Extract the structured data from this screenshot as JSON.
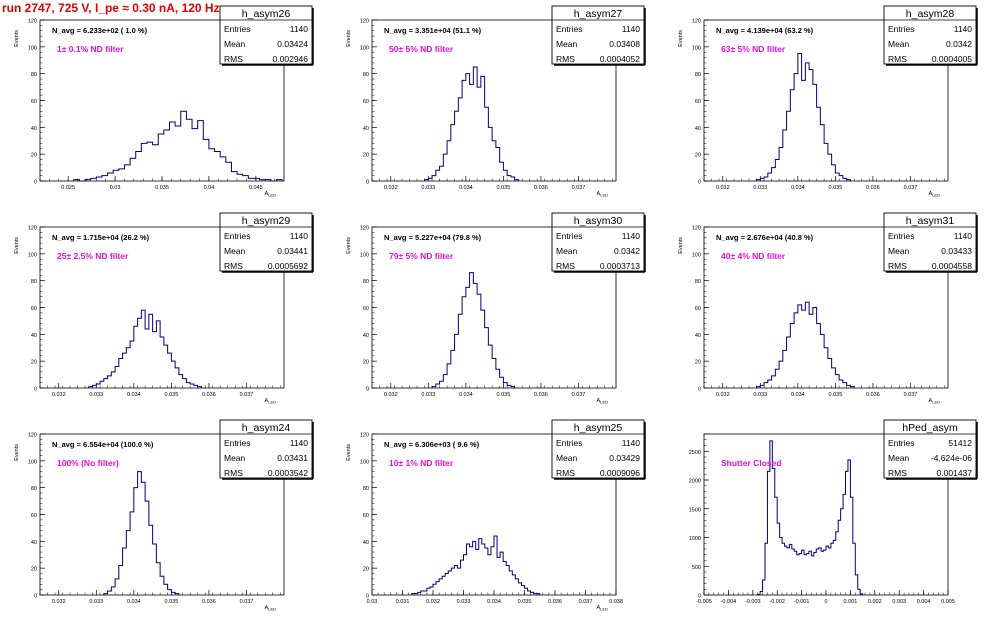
{
  "page_title": "run 2747,   725 V, I_pe ≈ 0.30 nA, 120 Hz",
  "colors": {
    "histogram": "#00007a",
    "axes": "#000000",
    "filter_label": "#e010e0",
    "title": "#e00000"
  },
  "stats_labels": {
    "entries": "Entries",
    "mean": "Mean",
    "rms": "RMS"
  },
  "chart_data": [
    {
      "type": "histogram",
      "name": "h_asym26",
      "ylabel": "Events",
      "xlabel": "A_{LED}",
      "navg": "N_avg = 6.233e+02 ( 1.0 %)",
      "filter": "1± 0.1% ND filter",
      "entries": "1140",
      "mean": "0.03424",
      "rms": "0.002946",
      "xlim": [
        0.022,
        0.048
      ],
      "ylim": [
        0,
        120
      ],
      "xticks": [
        0.025,
        0.03,
        0.035,
        0.04,
        0.045
      ],
      "xtick_labels": [
        "0.025",
        "0.03",
        "0.035",
        "0.04",
        "0.045"
      ],
      "yticks": [
        0,
        20,
        40,
        60,
        80,
        100,
        120
      ],
      "bins": {
        "start": 0.0256,
        "width": 0.0006,
        "counts": [
          1,
          0,
          1,
          2,
          3,
          4,
          6,
          8,
          9,
          12,
          17,
          22,
          28,
          29,
          27,
          35,
          38,
          44,
          41,
          52,
          46,
          39,
          45,
          31,
          24,
          22,
          18,
          14,
          7,
          5,
          4,
          2,
          2,
          1,
          1,
          0,
          1
        ]
      }
    },
    {
      "type": "histogram",
      "name": "h_asym27",
      "ylabel": "Events",
      "xlabel": "A_{LED}",
      "navg": "N_avg = 3.351e+04 (51.1 %)",
      "filter": "50± 5% ND filter",
      "entries": "1140",
      "mean": "0.03408",
      "rms": "0.0004052",
      "xlim": [
        0.0315,
        0.038
      ],
      "ylim": [
        0,
        120
      ],
      "xticks": [
        0.032,
        0.033,
        0.034,
        0.035,
        0.036,
        0.037
      ],
      "xtick_labels": [
        "0.032",
        "0.033",
        "0.034",
        "0.035",
        "0.036",
        "0.037"
      ],
      "yticks": [
        0,
        20,
        40,
        60,
        80,
        100,
        120
      ],
      "bins": {
        "start": 0.0329,
        "width": 0.0001,
        "counts": [
          1,
          2,
          4,
          8,
          11,
          20,
          30,
          42,
          52,
          62,
          75,
          80,
          72,
          85,
          70,
          78,
          55,
          40,
          30,
          25,
          14,
          8,
          4,
          3,
          1
        ]
      }
    },
    {
      "type": "histogram",
      "name": "h_asym28",
      "ylabel": "Events",
      "xlabel": "A_{LED}",
      "navg": "N_avg = 4.139e+04 (63.2 %)",
      "filter": "63± 5% ND filter",
      "entries": "1140",
      "mean": "0.0342",
      "rms": "0.0004005",
      "xlim": [
        0.0315,
        0.038
      ],
      "ylim": [
        0,
        120
      ],
      "xticks": [
        0.032,
        0.033,
        0.034,
        0.035,
        0.036,
        0.037
      ],
      "xtick_labels": [
        "0.032",
        "0.033",
        "0.034",
        "0.035",
        "0.036",
        "0.037"
      ],
      "yticks": [
        0,
        20,
        40,
        60,
        80,
        100,
        120
      ],
      "bins": {
        "start": 0.0329,
        "width": 0.0001,
        "counts": [
          1,
          2,
          3,
          6,
          10,
          16,
          25,
          38,
          52,
          68,
          80,
          95,
          75,
          88,
          83,
          72,
          55,
          42,
          28,
          20,
          12,
          6,
          4,
          2,
          1
        ]
      }
    },
    {
      "type": "histogram",
      "name": "h_asym29",
      "ylabel": "Events",
      "xlabel": "A_{LED}",
      "navg": "N_avg = 1.715e+04 (26.2 %)",
      "filter": "25± 2.5% ND filter",
      "entries": "1140",
      "mean": "0.03441",
      "rms": "0.0005692",
      "xlim": [
        0.0315,
        0.038
      ],
      "ylim": [
        0,
        120
      ],
      "xticks": [
        0.032,
        0.033,
        0.034,
        0.035,
        0.036,
        0.037
      ],
      "xtick_labels": [
        "0.032",
        "0.033",
        "0.034",
        "0.035",
        "0.036",
        "0.037"
      ],
      "yticks": [
        0,
        20,
        40,
        60,
        80,
        100,
        120
      ],
      "bins": {
        "start": 0.0328,
        "width": 0.0001,
        "counts": [
          1,
          2,
          3,
          5,
          7,
          9,
          12,
          16,
          22,
          26,
          30,
          35,
          46,
          52,
          58,
          44,
          55,
          42,
          50,
          38,
          32,
          26,
          20,
          15,
          10,
          7,
          4,
          3,
          2,
          1
        ]
      }
    },
    {
      "type": "histogram",
      "name": "h_asym30",
      "ylabel": "Events",
      "xlabel": "A_{LED}",
      "navg": "N_avg = 5.227e+04 (79.8 %)",
      "filter": "79± 5% ND filter",
      "entries": "1140",
      "mean": "0.0342",
      "rms": "0.0003713",
      "xlim": [
        0.0315,
        0.038
      ],
      "ylim": [
        0,
        120
      ],
      "xticks": [
        0.032,
        0.033,
        0.034,
        0.035,
        0.036,
        0.037
      ],
      "xtick_labels": [
        "0.032",
        "0.033",
        "0.034",
        "0.035",
        "0.036",
        "0.037"
      ],
      "yticks": [
        0,
        20,
        40,
        60,
        80,
        100,
        120
      ],
      "bins": {
        "start": 0.0331,
        "width": 0.0001,
        "counts": [
          1,
          3,
          5,
          10,
          18,
          28,
          40,
          55,
          68,
          75,
          86,
          78,
          70,
          58,
          45,
          32,
          22,
          14,
          8,
          4,
          2,
          1
        ]
      }
    },
    {
      "type": "histogram",
      "name": "h_asym31",
      "ylabel": "Events",
      "xlabel": "A_{LED}",
      "navg": "N_avg = 2.676e+04 (40.8 %)",
      "filter": "40± 4% ND filter",
      "entries": "1140",
      "mean": "0.03433",
      "rms": "0.0004558",
      "xlim": [
        0.0315,
        0.038
      ],
      "ylim": [
        0,
        120
      ],
      "xticks": [
        0.032,
        0.033,
        0.034,
        0.035,
        0.036,
        0.037
      ],
      "xtick_labels": [
        "0.032",
        "0.033",
        "0.034",
        "0.035",
        "0.036",
        "0.037"
      ],
      "yticks": [
        0,
        20,
        40,
        60,
        80,
        100,
        120
      ],
      "bins": {
        "start": 0.0329,
        "width": 0.0001,
        "counts": [
          1,
          2,
          4,
          6,
          9,
          14,
          20,
          28,
          38,
          48,
          56,
          62,
          58,
          64,
          55,
          60,
          48,
          40,
          30,
          22,
          15,
          10,
          6,
          4,
          2,
          1
        ]
      }
    },
    {
      "type": "histogram",
      "name": "h_asym24",
      "ylabel": "Events",
      "xlabel": "A_{LED}",
      "navg": "N_avg = 6.554e+04 (100.0 %)",
      "filter": "100% (No filter)",
      "entries": "1140",
      "mean": "0.03431",
      "rms": "0.0003542",
      "xlim": [
        0.0315,
        0.038
      ],
      "ylim": [
        0,
        120
      ],
      "xticks": [
        0.032,
        0.033,
        0.034,
        0.035,
        0.036,
        0.037
      ],
      "xtick_labels": [
        "0.032",
        "0.033",
        "0.034",
        "0.035",
        "0.036",
        "0.037"
      ],
      "yticks": [
        0,
        20,
        40,
        60,
        80,
        100,
        120
      ],
      "bins": {
        "start": 0.0332,
        "width": 0.0001,
        "counts": [
          1,
          3,
          6,
          12,
          22,
          35,
          48,
          62,
          80,
          92,
          84,
          70,
          52,
          38,
          24,
          14,
          8,
          4,
          2,
          1
        ]
      }
    },
    {
      "type": "histogram",
      "name": "h_asym25",
      "ylabel": "Events",
      "xlabel": "A_{LED}",
      "navg": "N_avg = 6.306e+03 ( 9.6 %)",
      "filter": "10± 1% ND filter",
      "entries": "1140",
      "mean": "0.03429",
      "rms": "0.0009096",
      "xlim": [
        0.03,
        0.038
      ],
      "ylim": [
        0,
        120
      ],
      "xticks": [
        0.03,
        0.031,
        0.032,
        0.033,
        0.034,
        0.035,
        0.036,
        0.037,
        0.038
      ],
      "xtick_labels": [
        "0.03",
        "0.031",
        "0.032",
        "0.033",
        "0.034",
        "0.035",
        "0.036",
        "0.037",
        "0.038"
      ],
      "yticks": [
        0,
        20,
        40,
        60,
        80,
        100,
        120
      ],
      "bins": {
        "start": 0.0313,
        "width": 0.0001,
        "counts": [
          1,
          1,
          2,
          3,
          3,
          5,
          6,
          8,
          10,
          12,
          14,
          16,
          18,
          20,
          22,
          20,
          26,
          30,
          38,
          36,
          40,
          34,
          42,
          38,
          35,
          30,
          36,
          44,
          28,
          32,
          25,
          22,
          18,
          15,
          12,
          9,
          7,
          5,
          3,
          2,
          1,
          1
        ]
      }
    },
    {
      "type": "histogram",
      "name": "hPed_asym",
      "ylabel": "",
      "xlabel": "",
      "navg": "",
      "filter": "Shutter Closed",
      "entries": "51412",
      "mean": "-4.624e-06",
      "rms": "0.001437",
      "xlim": [
        -0.005,
        0.005
      ],
      "ylim": [
        0,
        2800
      ],
      "xticks": [
        -0.005,
        -0.004,
        -0.003,
        -0.002,
        -0.001,
        0,
        0.001,
        0.002,
        0.003,
        0.004,
        0.005
      ],
      "xtick_labels": [
        "-0.005",
        "-0.004",
        "-0.003",
        "-0.002",
        "-0.001",
        "0",
        "0.001",
        "0.002",
        "0.003",
        "0.004",
        "0.005"
      ],
      "yticks": [
        0,
        500,
        1000,
        1500,
        2000,
        2500
      ],
      "bins": {
        "start": -0.0028,
        "width": 0.0001,
        "counts": [
          10,
          60,
          260,
          900,
          2150,
          2680,
          2200,
          1700,
          1250,
          1000,
          900,
          850,
          820,
          880,
          800,
          760,
          700,
          720,
          780,
          700,
          720,
          760,
          680,
          740,
          800,
          820,
          760,
          780,
          850,
          820,
          900,
          950,
          1100,
          1300,
          1500,
          1750,
          2150,
          2350,
          1700,
          900,
          350,
          100,
          20
        ]
      }
    }
  ]
}
